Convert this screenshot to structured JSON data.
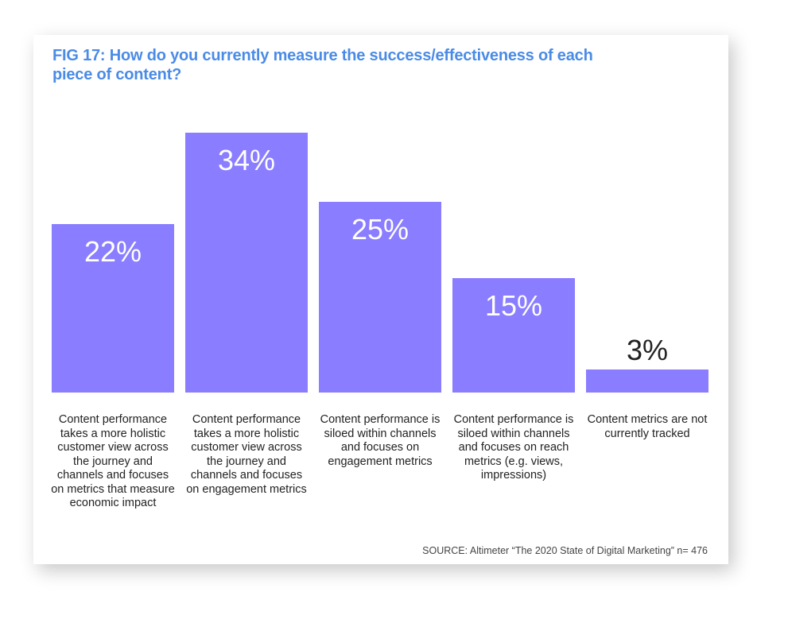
{
  "chart_data": {
    "type": "bar",
    "title": "FIG 17: How do you currently measure the success/effectiveness of each piece of content?",
    "categories": [
      "Content performance takes a more holistic customer view across the journey and channels and focuses on metrics that measure economic impact",
      "Content performance takes a more holistic customer view across the journey and channels and focuses on engagement metrics",
      "Content performance is siloed within channels and focuses on engagement metrics",
      "Content performance is siloed within channels and focuses on reach metrics (e.g. views, impressions)",
      "Content metrics are not currently tracked"
    ],
    "values": [
      22,
      34,
      25,
      15,
      3
    ],
    "value_labels": [
      "22%",
      "34%",
      "25%",
      "15%",
      "3%"
    ],
    "xlabel": "",
    "ylabel": "",
    "ylim": [
      0,
      34
    ],
    "grid": false,
    "bar_color": "#8a7dff",
    "title_color": "#4a8be6",
    "source": "SOURCE: Altimeter “The 2020 State of Digital Marketing” n= 476"
  }
}
